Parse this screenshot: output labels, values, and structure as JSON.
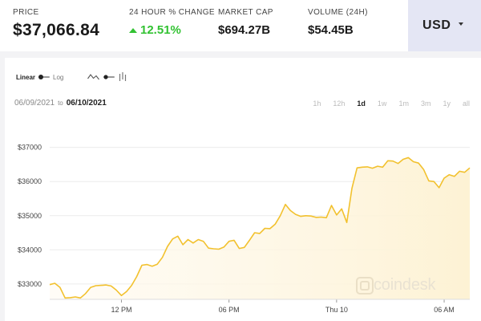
{
  "stats": {
    "price_label": "PRICE",
    "price_value": "$37,066.84",
    "change_label": "24 HOUR % CHANGE",
    "change_value": "12.51%",
    "mcap_label": "MARKET CAP",
    "mcap_value": "$694.27B",
    "volume_label": "VOLUME (24H)",
    "volume_value": "$54.45B"
  },
  "currency": {
    "label": "USD"
  },
  "chart_controls": {
    "linear_label": "Linear",
    "log_label": "Log",
    "chart_type_icons": [
      "line-chart-icon",
      "toggle-icon",
      "bar-chart-icon"
    ]
  },
  "date_range": {
    "from": "06/09/2021",
    "to_word": "to",
    "to": "06/10/2021"
  },
  "ranges": [
    "1h",
    "12h",
    "1d",
    "1w",
    "1m",
    "3m",
    "1y",
    "all"
  ],
  "active_range": "1d",
  "watermark": {
    "text": "coindesk"
  },
  "colors": {
    "line": "#f2c12e",
    "fill": "#fdf2d4",
    "positive": "#32c232",
    "currency_bg": "#e4e6f4"
  },
  "chart_data": {
    "type": "area",
    "title": "",
    "xlabel": "",
    "ylabel": "",
    "x_ticks": [
      "12 PM",
      "06 PM",
      "Thu 10",
      "06 AM"
    ],
    "y_ticks": [
      "$33000",
      "$34000",
      "$35000",
      "$36000",
      "$37000"
    ],
    "ylim": [
      32550,
      37650
    ],
    "grid": true,
    "x_unit": "hours from start of window",
    "x": [
      0,
      0.3,
      0.6,
      0.9,
      1.2,
      1.5,
      1.8,
      2.1,
      2.4,
      2.7,
      3.0,
      3.3,
      3.6,
      3.9,
      4.2,
      4.5,
      4.8,
      5.1,
      5.4,
      5.7,
      6.0,
      6.3,
      6.6,
      6.9,
      7.2,
      7.5,
      7.8,
      8.1,
      8.4,
      8.7,
      9.0,
      9.3,
      9.6,
      9.9,
      10.2,
      10.5,
      10.8,
      11.1,
      11.4,
      11.7,
      12.0,
      12.3,
      12.6,
      12.9,
      13.2,
      13.5,
      13.8,
      14.1,
      14.4,
      14.7,
      15.0,
      15.3,
      15.6,
      15.9,
      16.2,
      16.5,
      16.8,
      17.1,
      17.4,
      17.7,
      18.0,
      18.3,
      18.6,
      18.9,
      19.2,
      19.5,
      19.8,
      20.1,
      20.4,
      20.7,
      21.0,
      21.3,
      21.6,
      21.9,
      22.2,
      22.5,
      22.8,
      23.1,
      23.4,
      23.7,
      24.0,
      24.3,
      24.6
    ],
    "values": [
      32980,
      33020,
      32900,
      32590,
      32600,
      32620,
      32590,
      32720,
      32900,
      32950,
      32960,
      32970,
      32940,
      32820,
      32660,
      32780,
      32960,
      33220,
      33550,
      33570,
      33520,
      33580,
      33780,
      34100,
      34320,
      34400,
      34150,
      34300,
      34200,
      34300,
      34250,
      34050,
      34030,
      34020,
      34080,
      34250,
      34280,
      34040,
      34070,
      34280,
      34500,
      34480,
      34630,
      34620,
      34750,
      35000,
      35330,
      35150,
      35040,
      34980,
      35000,
      34990,
      34950,
      34960,
      34940,
      35300,
      35020,
      35200,
      34800,
      35800,
      36400,
      36420,
      36430,
      36390,
      36450,
      36420,
      36610,
      36600,
      36530,
      36650,
      36700,
      36580,
      36540,
      36350,
      36020,
      36000,
      35820,
      36100,
      36200,
      36150,
      36300,
      36270,
      36400
    ]
  }
}
